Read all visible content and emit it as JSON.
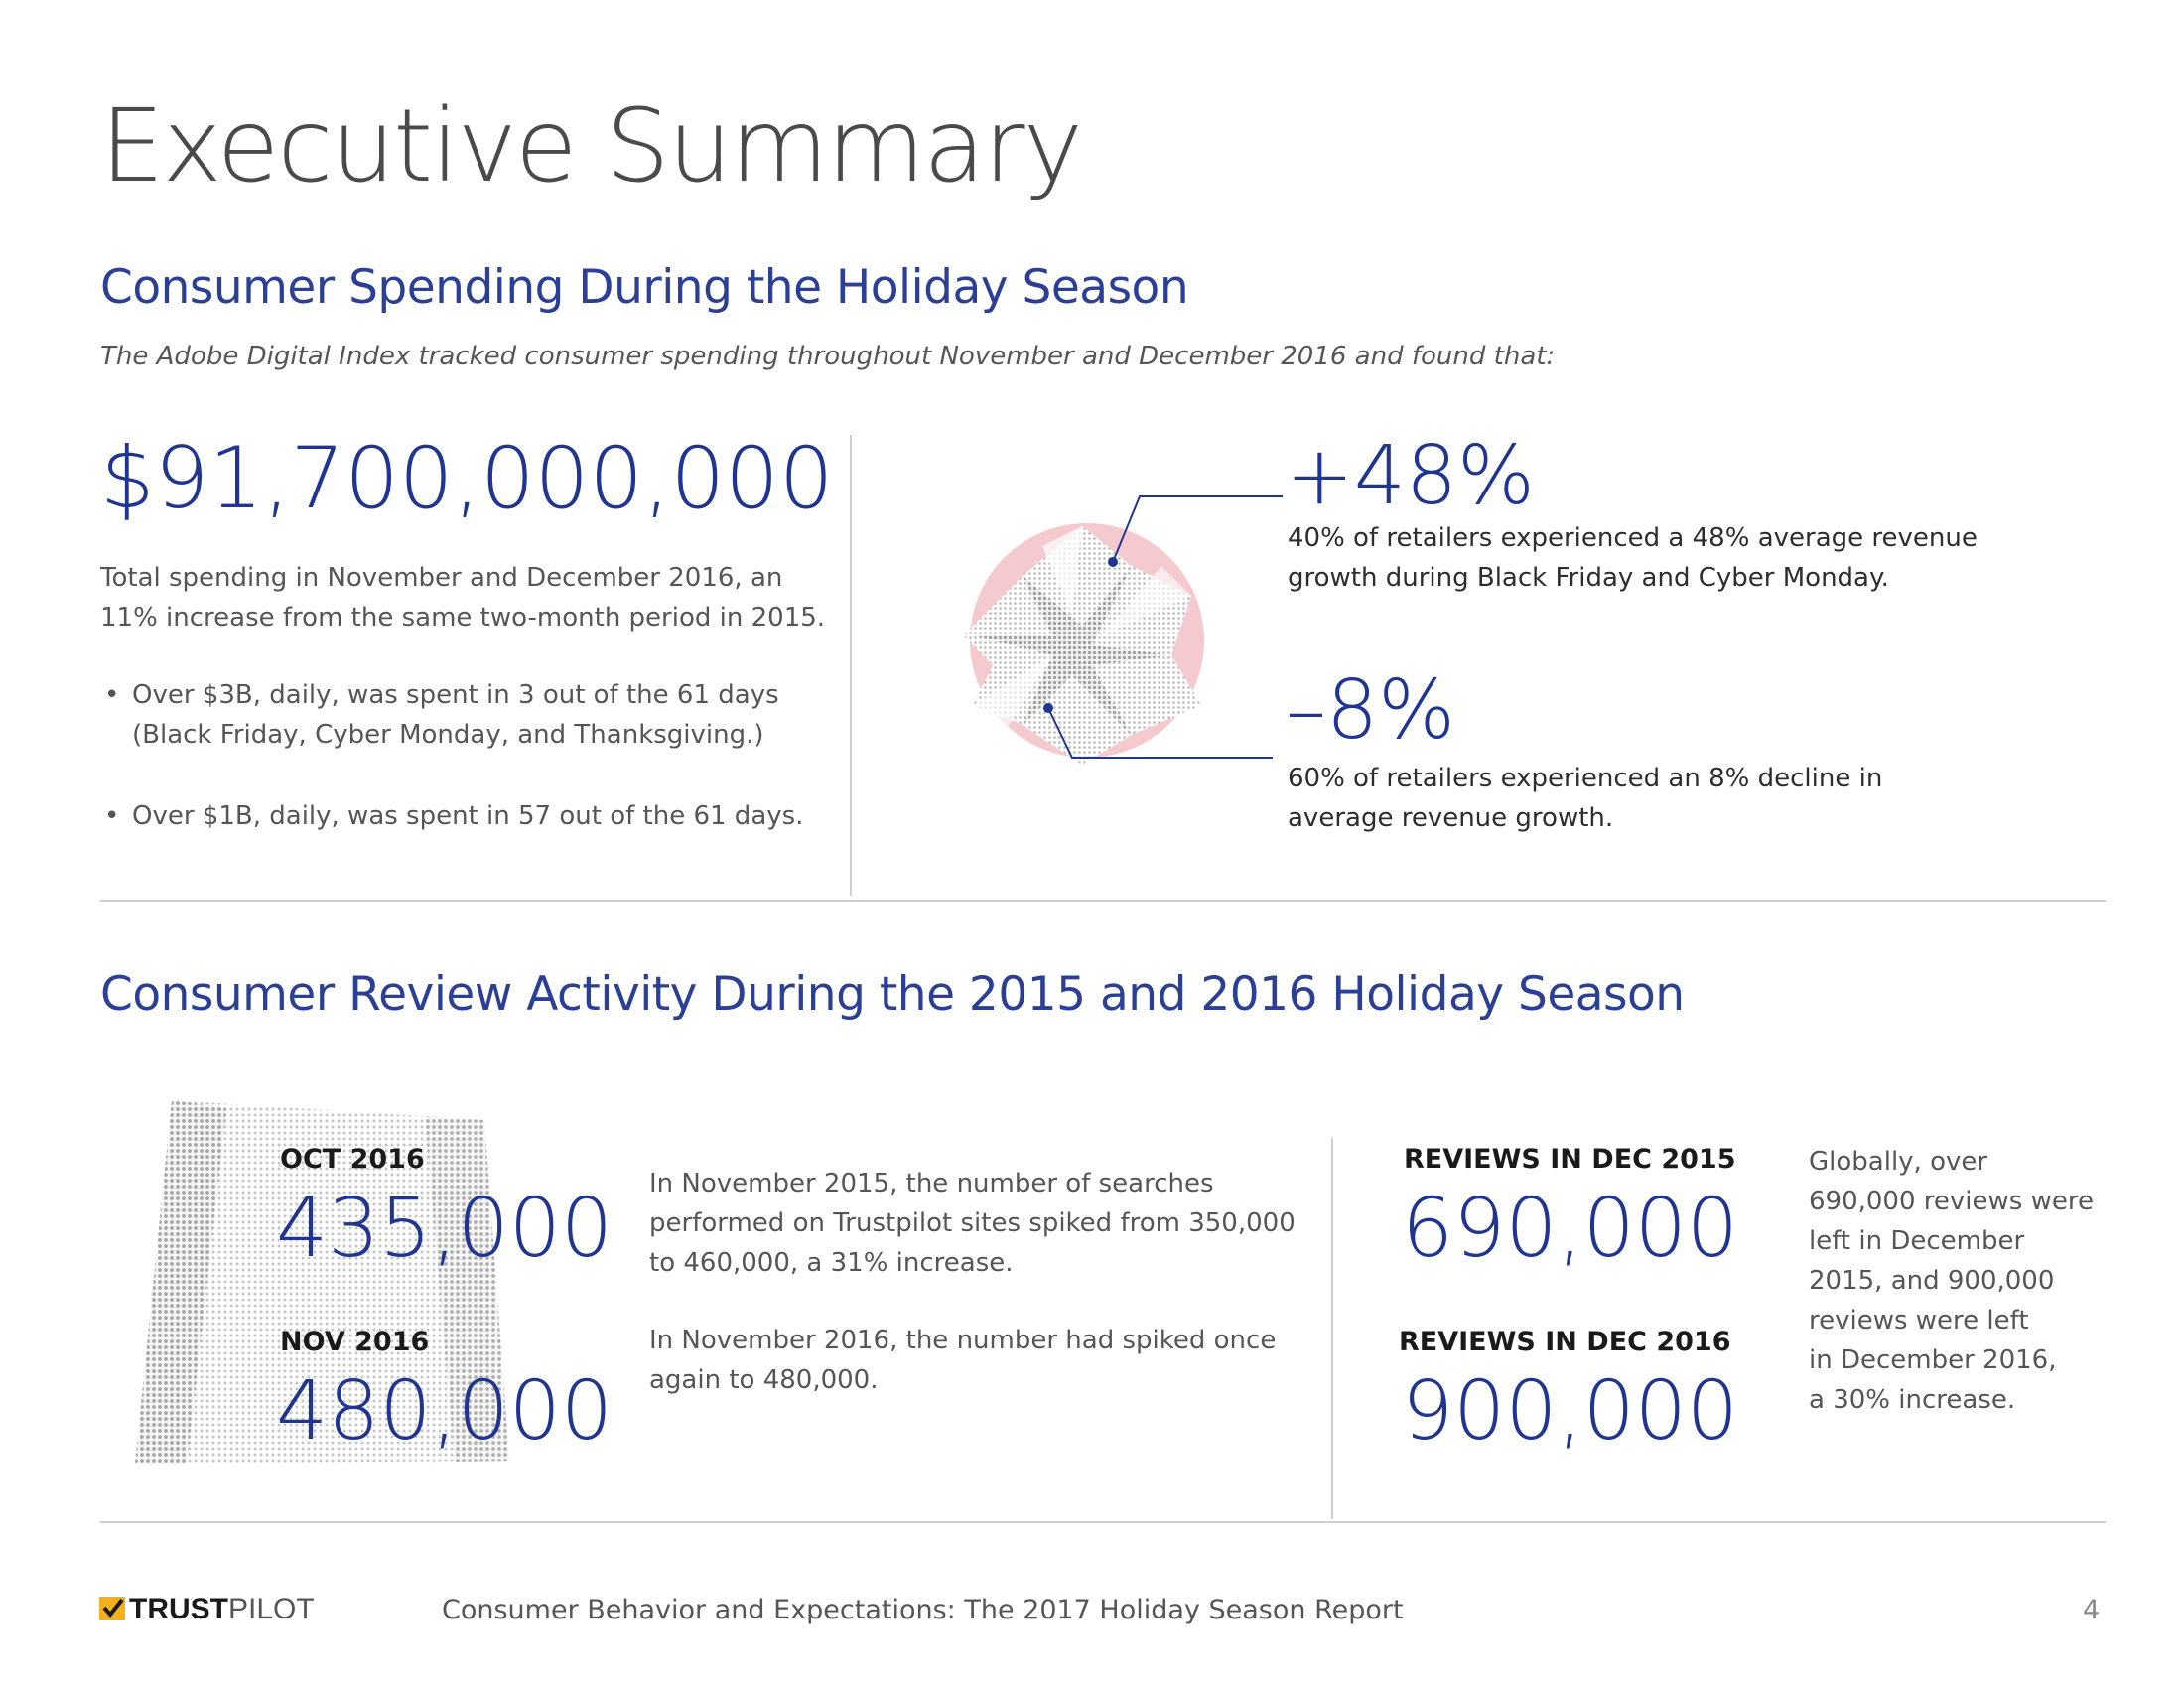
{
  "page_title": "Executive Summary",
  "spending": {
    "heading": "Consumer Spending During the Holiday Season",
    "intro": "The Adobe Digital Index tracked consumer spending throughout November and December 2016 and found that:",
    "total_value": "$91,700,000,000",
    "total_desc_1": "Total spending in November and December 2016, an",
    "total_desc_2": "11% increase from the same two-month period in 2015.",
    "bullets": [
      {
        "line1": "Over $3B, daily, was spent in 3 out of the 61 days",
        "line2": "(Black Friday, Cyber Monday, and Thanksgiving.)"
      },
      {
        "line1": "Over $1B, daily, was spent in 57 out of the 61 days.",
        "line2": ""
      }
    ],
    "stat_up": {
      "value": "+48%",
      "line1": "40% of retailers experienced a 48% average revenue",
      "line2": "growth during Black Friday and Cyber Monday."
    },
    "stat_down": {
      "value": "–8%",
      "line1": "60% of retailers experienced an 8% decline in",
      "line2": "average revenue growth."
    }
  },
  "reviews": {
    "heading": "Consumer Review Activity During the 2015 and 2016 Holiday Season",
    "oct_label": "OCT 2016",
    "oct_value": "435,000",
    "nov_label": "NOV 2016",
    "nov_value": "480,000",
    "search_text_1": [
      "In November 2015, the number of searches",
      "performed on Trustpilot sites spiked from 350,000",
      "to 460,000, a 31% increase."
    ],
    "search_text_2": [
      "In November 2016, the number had spiked once",
      "again to 480,000."
    ],
    "dec2015_label": "REVIEWS IN DEC 2015",
    "dec2015_value": "690,000",
    "dec2016_label": "REVIEWS IN DEC 2016",
    "dec2016_value": "900,000",
    "global_text": [
      "Globally, over",
      "690,000 reviews were",
      "left in December",
      "2015, and 900,000",
      "reviews were left",
      "in December 2016,",
      "a 30% increase."
    ]
  },
  "footer": {
    "brand_part1": "TRUST",
    "brand_part2": "PILOT",
    "report_title": "Consumer Behavior and Expectations: The 2017 Holiday Season Report",
    "page_number": "4"
  },
  "colors": {
    "heading_blue": "#2b3f96",
    "number_blue": "#1f3591",
    "brand_yellow": "#f2b01e",
    "accent_pink": "#f2b8be"
  }
}
